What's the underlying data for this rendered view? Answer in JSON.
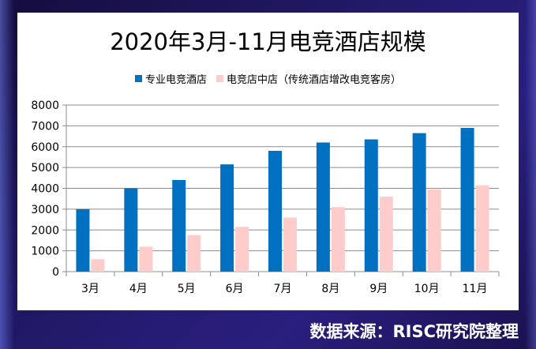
{
  "chart_data": {
    "type": "bar",
    "title": "2020年3月-11月电竞酒店规模",
    "categories": [
      "3月",
      "4月",
      "5月",
      "6月",
      "7月",
      "8月",
      "9月",
      "10月",
      "11月"
    ],
    "series": [
      {
        "name": "专业电竞酒店",
        "color": "#0070c0",
        "values": [
          3000,
          4000,
          4400,
          5150,
          5800,
          6200,
          6350,
          6650,
          6900
        ]
      },
      {
        "name": "电竞店中店（传统酒店增改电竞客房）",
        "color": "#ffcccc",
        "values": [
          600,
          1200,
          1750,
          2150,
          2600,
          3100,
          3600,
          3950,
          4150
        ]
      }
    ],
    "ylim": [
      0,
      8000
    ],
    "yticks": [
      0,
      1000,
      2000,
      3000,
      4000,
      5000,
      6000,
      7000,
      8000
    ],
    "grid": true,
    "legend_position": "top"
  },
  "source_text": "数据来源：RISC研究院整理"
}
